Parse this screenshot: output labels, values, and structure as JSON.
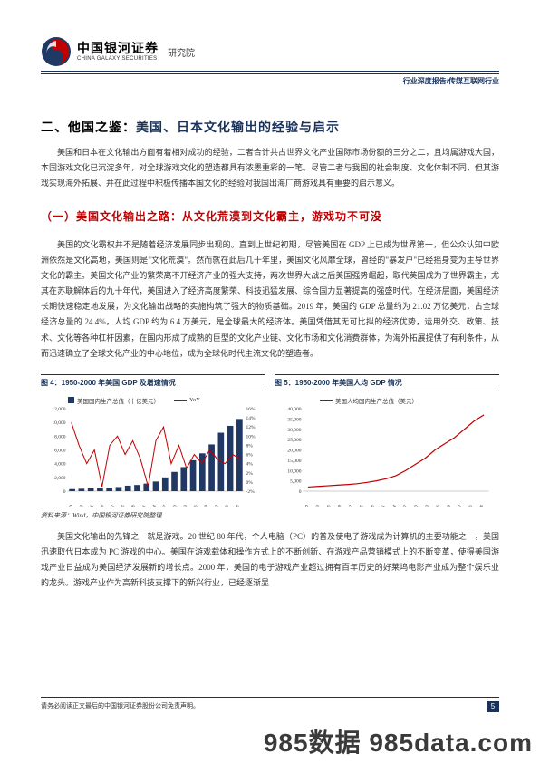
{
  "header": {
    "logo_cn": "中国银河证券",
    "logo_en": "CHINA GALAXY SECURITIES",
    "dept": "研究院",
    "logo_outer": "#203864",
    "logo_inner": "#c00000"
  },
  "top_right": {
    "label": "行业深度报告/传媒互联网行业",
    "color": "#203864"
  },
  "section_title": {
    "prefix": "二、他国之鉴：",
    "main": "美国、日本文化输出的经验与启示",
    "prefix_color": "#000000",
    "main_color": "#19325b"
  },
  "para1": "美国和日本在文化输出方面有着相对成功的经验，二者合计共占世界文化产业国际市场份额的三分之二，且均属游戏大国，本国游戏文化已沉淀多年，对全球游戏文化的塑造都具有浓墨重彩的一笔。尽管二者与我国的社会制度、文化体制不同，但其游戏实现海外拓展、并在此过程中积极传播本国文化的经验对我国出海厂商游戏具有重要的启示意义。",
  "sub_title": {
    "text": "（一）美国文化输出之路：从文化荒漠到文化霸主，游戏功不可没",
    "color": "#c00000"
  },
  "para2": "美国的文化霸权并不是随着经济发展同步出现的。直到上世纪初期，尽管美国在 GDP 上已成为世界第一，但公众认知中欧洲依然是文化高地，美国则是\"文化荒漠\"。然而就在此后几十年里，美国文化风靡全球，曾经的\"暴发户\"已经摇身变为主导世界文化的霸主。美国文化产业的繁荣离不开经济产业的强大支持，两次世界大战之后美国强势崛起，取代英国成为了世界霸主，尤其在苏联解体后的九十年代，美国进入了经济高度繁荣、科技迅猛发展、综合国力显著提高的强盛时代。在经济层面，美国经济长期快速稳定地发展，为文化输出战略的实施构筑了强大的物质基础。2019 年，美国的 GDP 总量约为 21.02 万亿美元，占全球经济总量的 24.4%，人均 GDP 约为 6.4 万美元，是全球最大的经济体。美国凭借其无可比拟的经济优势，运用外交、政策、技术、文化等各种杠杆因素，在国内形成了成熟的巨型的文化产业链、文化市场和文化消费群体，为海外拓展提供了有利条件，从而迅速确立了全球文化产业的中心地位，成为全球化时代主流文化的塑造者。",
  "chart_left": {
    "caption": "图 4：1950-2000 年美国 GDP 及增速情况",
    "caption_color": "#19325b",
    "legend": [
      {
        "label": "美国国内生产总值（十亿美元）",
        "type": "square",
        "color": "#203864"
      },
      {
        "label": "YoY",
        "type": "line",
        "color": "#c00000"
      }
    ],
    "bar_color": "#203864",
    "line_color": "#c00000",
    "y_left": {
      "min": 0,
      "max": 12000,
      "step": 2000
    },
    "y_left_labels": [
      "0",
      "2,000",
      "4,000",
      "6,000",
      "8,000",
      "10,000",
      "12,000"
    ],
    "y_right": {
      "min": -2,
      "max": 16,
      "step": 2,
      "suffix": "%"
    },
    "y_right_labels": [
      "-2%",
      "0%",
      "2%",
      "4%",
      "6%",
      "8%",
      "10%",
      "12%",
      "14%",
      "16%"
    ],
    "x_labels": [
      "1950",
      "1953",
      "1956",
      "1959",
      "1962",
      "1965",
      "1968",
      "1971",
      "1974",
      "1977",
      "1980",
      "1983",
      "1986",
      "1989",
      "1992",
      "1995",
      "1998"
    ],
    "bars": [
      300,
      350,
      400,
      450,
      500,
      600,
      800,
      900,
      1100,
      1400,
      2000,
      2800,
      3500,
      4500,
      5500,
      6800,
      8500,
      9500,
      10500
    ],
    "line_pts": [
      13,
      8,
      4,
      7,
      -1,
      8,
      10,
      6,
      9,
      5,
      -1,
      9,
      12,
      4,
      8,
      3,
      6,
      4,
      7,
      5,
      4,
      6,
      5
    ]
  },
  "chart_right": {
    "caption": "图 5：1950-2000 年美国人均 GDP 情况",
    "caption_color": "#19325b",
    "legend": [
      {
        "label": "美国人均国内生产总值（美元）",
        "type": "line",
        "color": "#c00000"
      }
    ],
    "line_color": "#c00000",
    "y_left": {
      "min": 0,
      "max": 40000,
      "step": 5000
    },
    "y_left_labels": [
      "0",
      "5,000",
      "10,000",
      "15,000",
      "20,000",
      "25,000",
      "30,000",
      "35,000",
      "40,000"
    ],
    "x_labels": [
      "1950",
      "1953",
      "1956",
      "1959",
      "1962",
      "1965",
      "1968",
      "1971",
      "1974",
      "1977",
      "1980",
      "1983",
      "1986",
      "1989",
      "1992",
      "1995",
      "1998"
    ],
    "line_pts": [
      2000,
      2300,
      2600,
      2900,
      3200,
      3600,
      4200,
      5000,
      6000,
      7500,
      10000,
      13000,
      16000,
      20000,
      23000,
      26000,
      30000,
      34000,
      37000
    ]
  },
  "chart_source": "资料来源：Wind，中国银河证券研究院整理",
  "para3": "美国文化输出的先锋之一就是游戏。20 世纪 80 年代，个人电脑（PC）的普及使电子游戏成为计算机的主要功能之一，美国迅速取代日本成为 PC 游戏的中心。美国在游戏载体和操作方式上的不断创新、在游戏产品营销模式上的不断变革，使得美国游戏产业日益成为美国经济发展新的增长点。2000 年，美国的电子游戏产业超过拥有百年历史的好莱坞电影产业成为整个娱乐业的龙头。游戏产业作为高新科技支撑下的新兴行业，已经逐渐显",
  "footnote": "请务必阅读正文最后的中国银河证券股份公司免责声明。",
  "page_number": "5",
  "watermark": "985数据 985data.com",
  "style": {
    "accent_blue": "#19325b",
    "accent_red": "#c00000",
    "body_font_size": 9,
    "line_height": 1.9
  }
}
